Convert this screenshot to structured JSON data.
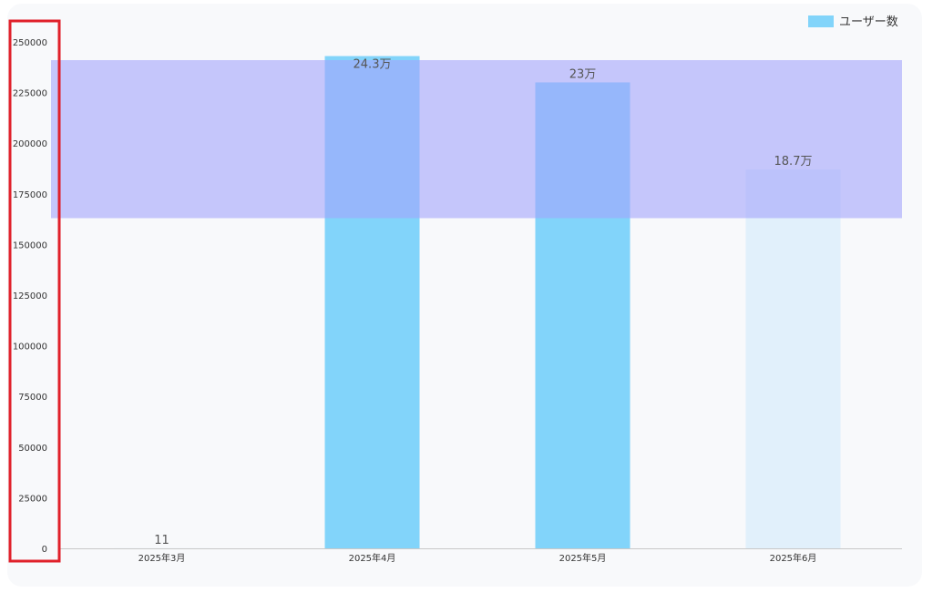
{
  "chart_data": {
    "type": "bar",
    "categories": [
      "2025年3月",
      "2025年4月",
      "2025年5月",
      "2025年6月"
    ],
    "series": [
      {
        "name": "ユーザー数",
        "values": [
          11,
          243000,
          230000,
          187000
        ],
        "data_labels": [
          "11",
          "24.3万",
          "23万",
          "18.7万"
        ],
        "colors": [
          "#82d4fa",
          "#82d4fa",
          "#82d4fa",
          "#e1f0fb"
        ]
      }
    ],
    "ylim": [
      0,
      250000
    ],
    "yticks": [
      "0",
      "25000",
      "50000",
      "75000",
      "100000",
      "125000",
      "150000",
      "175000",
      "200000",
      "225000",
      "250000"
    ],
    "highlight_band": {
      "from": 163000,
      "to": 241000,
      "color": "#a4a4fb"
    },
    "legend": "top-right",
    "grid": false
  },
  "annotation": {
    "color": "#e0202a"
  }
}
